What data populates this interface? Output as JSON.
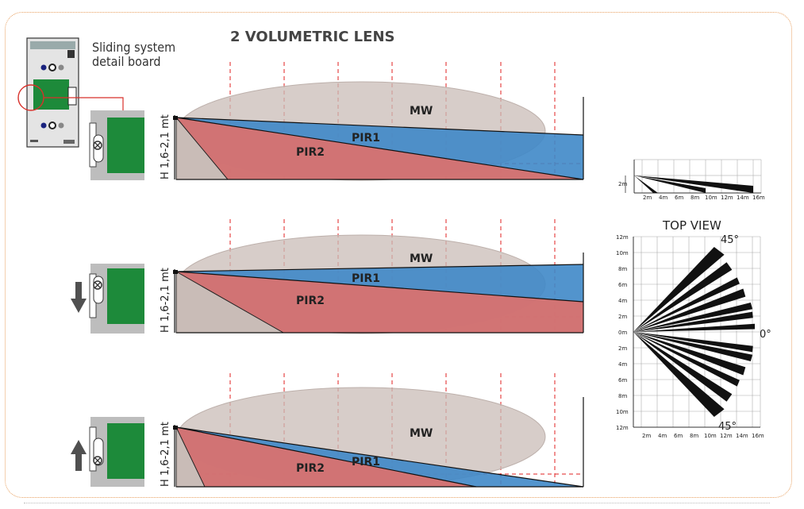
{
  "title": "2 VOLUMETRIC LENS",
  "board_caption": [
    "Sliding system",
    "detail board"
  ],
  "height_label": "H 1,6-2,1 mt",
  "zones": {
    "mw": "MW",
    "pir1": "PIR1",
    "pir2": "PIR2"
  },
  "top_view": {
    "title": "TOP VIEW",
    "angle_top": "45°",
    "angle_mid": "0°",
    "angle_bottom": "45°",
    "y_ticks": [
      "12m",
      "10m",
      "8m",
      "6m",
      "4m",
      "2m",
      "0m",
      "2m",
      "4m",
      "6m",
      "8m",
      "10m",
      "12m"
    ],
    "x_ticks": [
      "2m",
      "4m",
      "6m",
      "8m",
      "10m",
      "12m",
      "14m",
      "16m"
    ]
  },
  "side_mini": {
    "y_label": "2m",
    "x_ticks": [
      "2m",
      "4m",
      "6m",
      "8m",
      "10m",
      "12m",
      "14m",
      "16m"
    ]
  },
  "colors": {
    "frame": "#e8a060",
    "mw_fill": "#c9bcb7",
    "pir1_fill": "#3f88c8",
    "pir2_fill": "#e0706a",
    "board_green": "#1d8a3a",
    "dashed_red": "#e02020",
    "arrow_gray": "#505050"
  }
}
